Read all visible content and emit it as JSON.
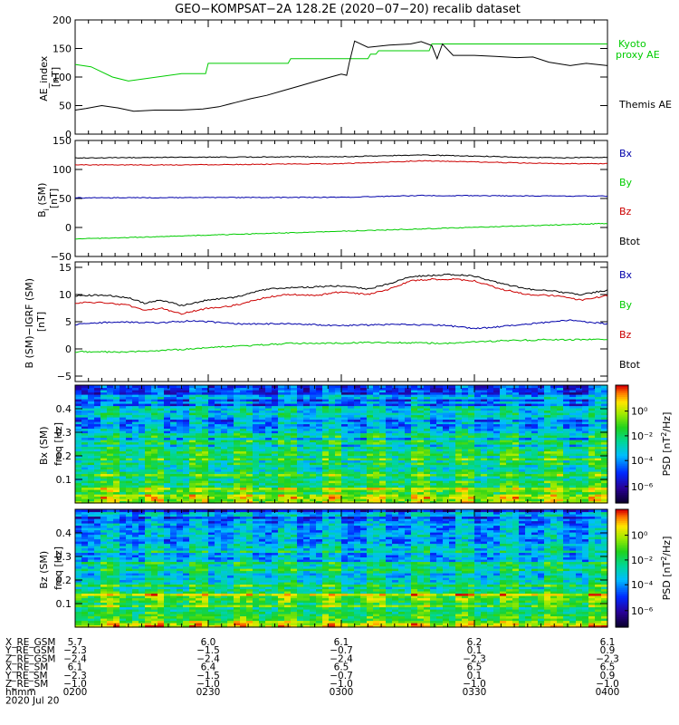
{
  "title": "GEO−KOMPSAT−2A 128.2E (2020−07−20) recalib dataset",
  "chart_data": [
    {
      "type": "line",
      "id": "ae",
      "ylabel": "AE_index [nT]",
      "ylabel_lines": [
        "AE_index",
        "[nT]"
      ],
      "ylim": [
        0,
        200
      ],
      "yticks": [
        0,
        50,
        100,
        150,
        200
      ],
      "xlim": [
        200,
        400
      ],
      "series": [
        {
          "name": "Kyoto proxy AE",
          "label_lines": [
            "Kyoto",
            "proxy AE"
          ],
          "color": "#00cc00",
          "x": [
            200,
            206,
            214,
            220,
            240,
            249,
            250,
            280,
            281,
            310,
            311,
            313,
            314,
            333,
            334,
            400
          ],
          "y": [
            122,
            118,
            100,
            93,
            106,
            106,
            124,
            124,
            132,
            132,
            140,
            140,
            146,
            146,
            158,
            158
          ]
        },
        {
          "name": "Themis AE",
          "label_lines": [
            "Themis AE"
          ],
          "color": "#000000",
          "x": [
            200,
            204,
            210,
            216,
            222,
            230,
            240,
            248,
            254,
            260,
            266,
            272,
            278,
            284,
            290,
            296,
            300,
            302,
            303,
            305,
            310,
            318,
            326,
            330,
            334,
            336,
            338,
            342,
            350,
            358,
            366,
            372,
            378,
            386,
            392,
            400
          ],
          "y": [
            42,
            45,
            50,
            46,
            40,
            42,
            42,
            44,
            48,
            55,
            62,
            68,
            76,
            84,
            92,
            100,
            105,
            103,
            125,
            163,
            152,
            156,
            158,
            162,
            155,
            132,
            158,
            138,
            138,
            136,
            134,
            135,
            126,
            120,
            124,
            120
          ]
        }
      ]
    },
    {
      "type": "line",
      "id": "b",
      "ylabel": "B_i (SM) [nT]",
      "ylabel_lines": [
        "B",
        "i",
        "(SM)",
        "[nT]"
      ],
      "ylim": [
        -50,
        150
      ],
      "yticks": [
        -50,
        0,
        50,
        100,
        150
      ],
      "xlim": [
        200,
        400
      ],
      "series": [
        {
          "name": "Bx",
          "color": "#0000aa",
          "x": [
            200,
            300,
            330,
            400
          ],
          "y": [
            51,
            52,
            55,
            54
          ]
        },
        {
          "name": "By",
          "color": "#00cc00",
          "x": [
            200,
            400
          ],
          "y": [
            -20,
            7
          ]
        },
        {
          "name": "Bz",
          "color": "#cc0000",
          "x": [
            200,
            240,
            300,
            330,
            350,
            380,
            400
          ],
          "y": [
            108,
            108,
            110,
            115,
            113,
            110,
            110
          ]
        },
        {
          "name": "Btot",
          "color": "#000000",
          "x": [
            200,
            240,
            300,
            330,
            350,
            380,
            400
          ],
          "y": [
            120,
            121,
            122,
            125,
            123,
            120,
            121
          ]
        }
      ]
    },
    {
      "type": "line",
      "id": "db",
      "ylabel": "B (SM)−IGRF (SM) [nT]",
      "ylabel_lines": [
        "B (SM)−IGRF (SM)",
        "[nT]"
      ],
      "ylim": [
        -6,
        16
      ],
      "yticks": [
        -5,
        0,
        5,
        10,
        15
      ],
      "xlim": [
        200,
        400
      ],
      "series": [
        {
          "name": "Bx",
          "color": "#0000aa",
          "x": [
            200,
            215,
            230,
            245,
            260,
            280,
            300,
            320,
            340,
            350,
            360,
            375,
            385,
            400
          ],
          "y": [
            4.5,
            5.0,
            4.8,
            5.2,
            4.6,
            4.6,
            4.3,
            4.5,
            4.3,
            3.7,
            4.1,
            4.8,
            5.3,
            4.6
          ]
        },
        {
          "name": "By",
          "color": "#00cc00",
          "x": [
            200,
            220,
            240,
            260,
            280,
            300,
            320,
            340,
            360,
            380,
            400
          ],
          "y": [
            -0.5,
            -0.6,
            -0.1,
            0.5,
            1.0,
            1.1,
            1.2,
            1.0,
            1.5,
            1.7,
            1.7
          ]
        },
        {
          "name": "Bz",
          "color": "#cc0000",
          "x": [
            200,
            212,
            220,
            226,
            232,
            240,
            250,
            260,
            272,
            280,
            290,
            300,
            310,
            318,
            326,
            334,
            342,
            350,
            360,
            370,
            380,
            390,
            400
          ],
          "y": [
            8.5,
            8.5,
            8.0,
            7.0,
            7.5,
            6.5,
            7.5,
            8.0,
            9.5,
            10.0,
            9.8,
            10.5,
            10.0,
            11.0,
            12.5,
            12.8,
            12.8,
            12.5,
            11.0,
            10.0,
            9.8,
            9.0,
            9.8
          ]
        },
        {
          "name": "Btot",
          "color": "#000000",
          "x": [
            200,
            212,
            220,
            226,
            232,
            240,
            250,
            260,
            272,
            280,
            290,
            300,
            310,
            318,
            326,
            334,
            342,
            350,
            360,
            370,
            380,
            390,
            400
          ],
          "y": [
            9.8,
            9.9,
            9.4,
            8.4,
            9.0,
            8.0,
            9.0,
            9.5,
            11.0,
            11.2,
            11.4,
            11.6,
            11.0,
            12.0,
            13.3,
            13.5,
            13.7,
            13.4,
            12.0,
            11.0,
            10.6,
            10.0,
            10.8
          ]
        }
      ]
    },
    {
      "type": "heatmap",
      "id": "bx-spec",
      "ylabel": "Bx (SM) freq [Hz]",
      "ylabel_lines": [
        "Bx (SM)",
        "freq [Hz]"
      ],
      "ylim": [
        0,
        0.5
      ],
      "yticks": [
        0.1,
        0.2,
        0.3,
        0.4
      ],
      "xlim": [
        200,
        400
      ],
      "colorbar": {
        "label": "PSD [nT²/Hz]",
        "label_lines": [
          "PSD [nT",
          "2",
          "/Hz]"
        ],
        "ticks": [
          "10⁰",
          "10⁻²",
          "10⁻⁴",
          "10⁻⁶"
        ],
        "scale": "log"
      }
    },
    {
      "type": "heatmap",
      "id": "bz-spec",
      "ylabel": "Bz (SM) freq [Hz]",
      "ylabel_lines": [
        "Bz (SM)",
        "freq [Hz]"
      ],
      "ylim": [
        0,
        0.5
      ],
      "yticks": [
        0.1,
        0.2,
        0.3,
        0.4
      ],
      "xlim": [
        200,
        400
      ],
      "colorbar": {
        "label": "PSD [nT²/Hz]",
        "label_lines": [
          "PSD [nT",
          "2",
          "/Hz]"
        ],
        "ticks": [
          "10⁰",
          "10⁻²",
          "10⁻⁴",
          "10⁻⁶"
        ],
        "scale": "log"
      }
    }
  ],
  "ephemeris": {
    "labels": [
      "X_RE_GSM",
      "Y_RE_GSM",
      "Z_RE_GSM",
      "X_RE_SM",
      "Y_RE_SM",
      "Z_RE_SM",
      "hhmm",
      "2020 Jul 20"
    ],
    "columns": [
      [
        "5.7",
        "−2.3",
        "−2.4",
        "6.1",
        "−2.3",
        "−1.0",
        "0200"
      ],
      [
        "6.0",
        "−1.5",
        "−2.4",
        "6.4",
        "−1.5",
        "−1.0",
        "0230"
      ],
      [
        "6.1",
        "−0.7",
        "−2.4",
        "6.5",
        "−0.7",
        "−1.0",
        "0300"
      ],
      [
        "6.2",
        "0.1",
        "−2.3",
        "6.5",
        "0.1",
        "−1.0",
        "0330"
      ],
      [
        "6.1",
        "0.9",
        "−2.3",
        "6.5",
        "0.9",
        "−1.0",
        "0400"
      ]
    ]
  }
}
